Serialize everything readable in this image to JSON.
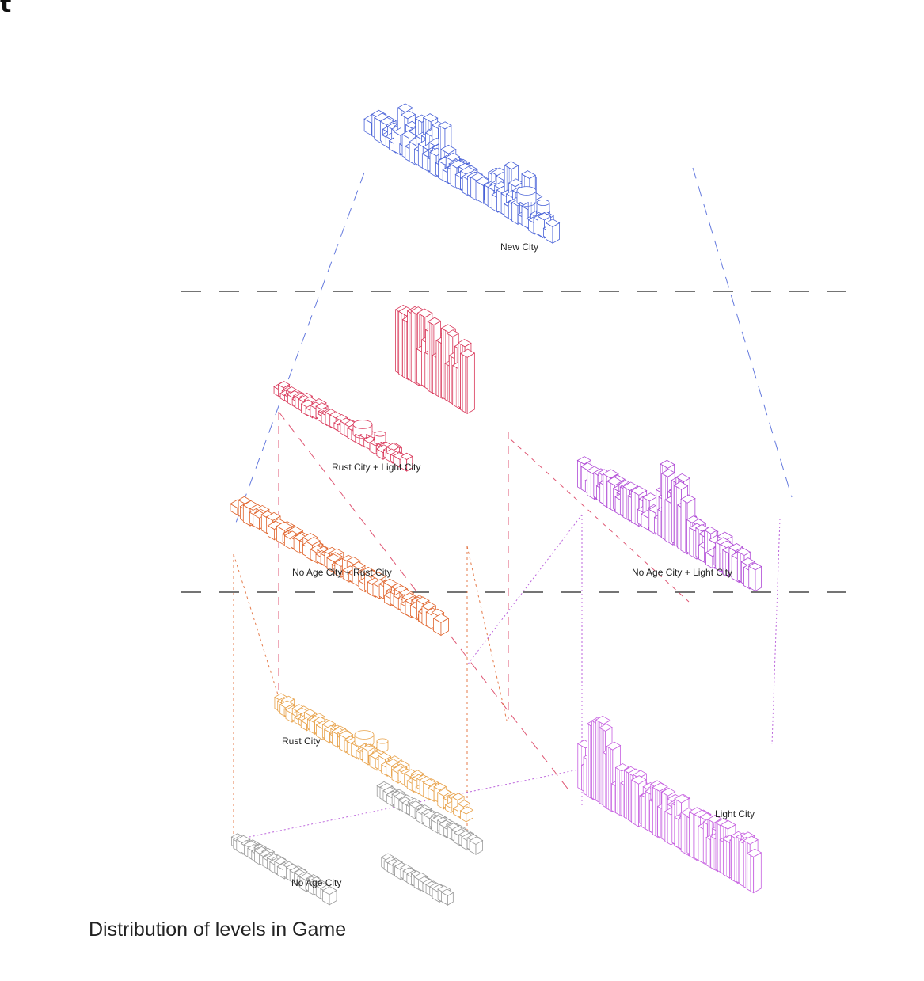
{
  "corner_text": "t",
  "caption": "Distribution of levels in Game",
  "levels": [
    {
      "id": "new",
      "label": "New City",
      "color": "#4a63d8"
    },
    {
      "id": "rust-light",
      "label": "Rust City + Light City",
      "color": "#d9385a"
    },
    {
      "id": "noage-light",
      "label": "No Age City + Light City",
      "color": "#b04ad6"
    },
    {
      "id": "noage-rust",
      "label": "No Age City + Rust City",
      "color": "#e0642c"
    },
    {
      "id": "rust",
      "label": "Rust City",
      "color": "#e8a24a"
    },
    {
      "id": "light",
      "label": "Light City",
      "color": "#c65fe0"
    },
    {
      "id": "noage",
      "label": "No Age City",
      "color": "#9a9a9a"
    }
  ],
  "divider_color": "#222222"
}
